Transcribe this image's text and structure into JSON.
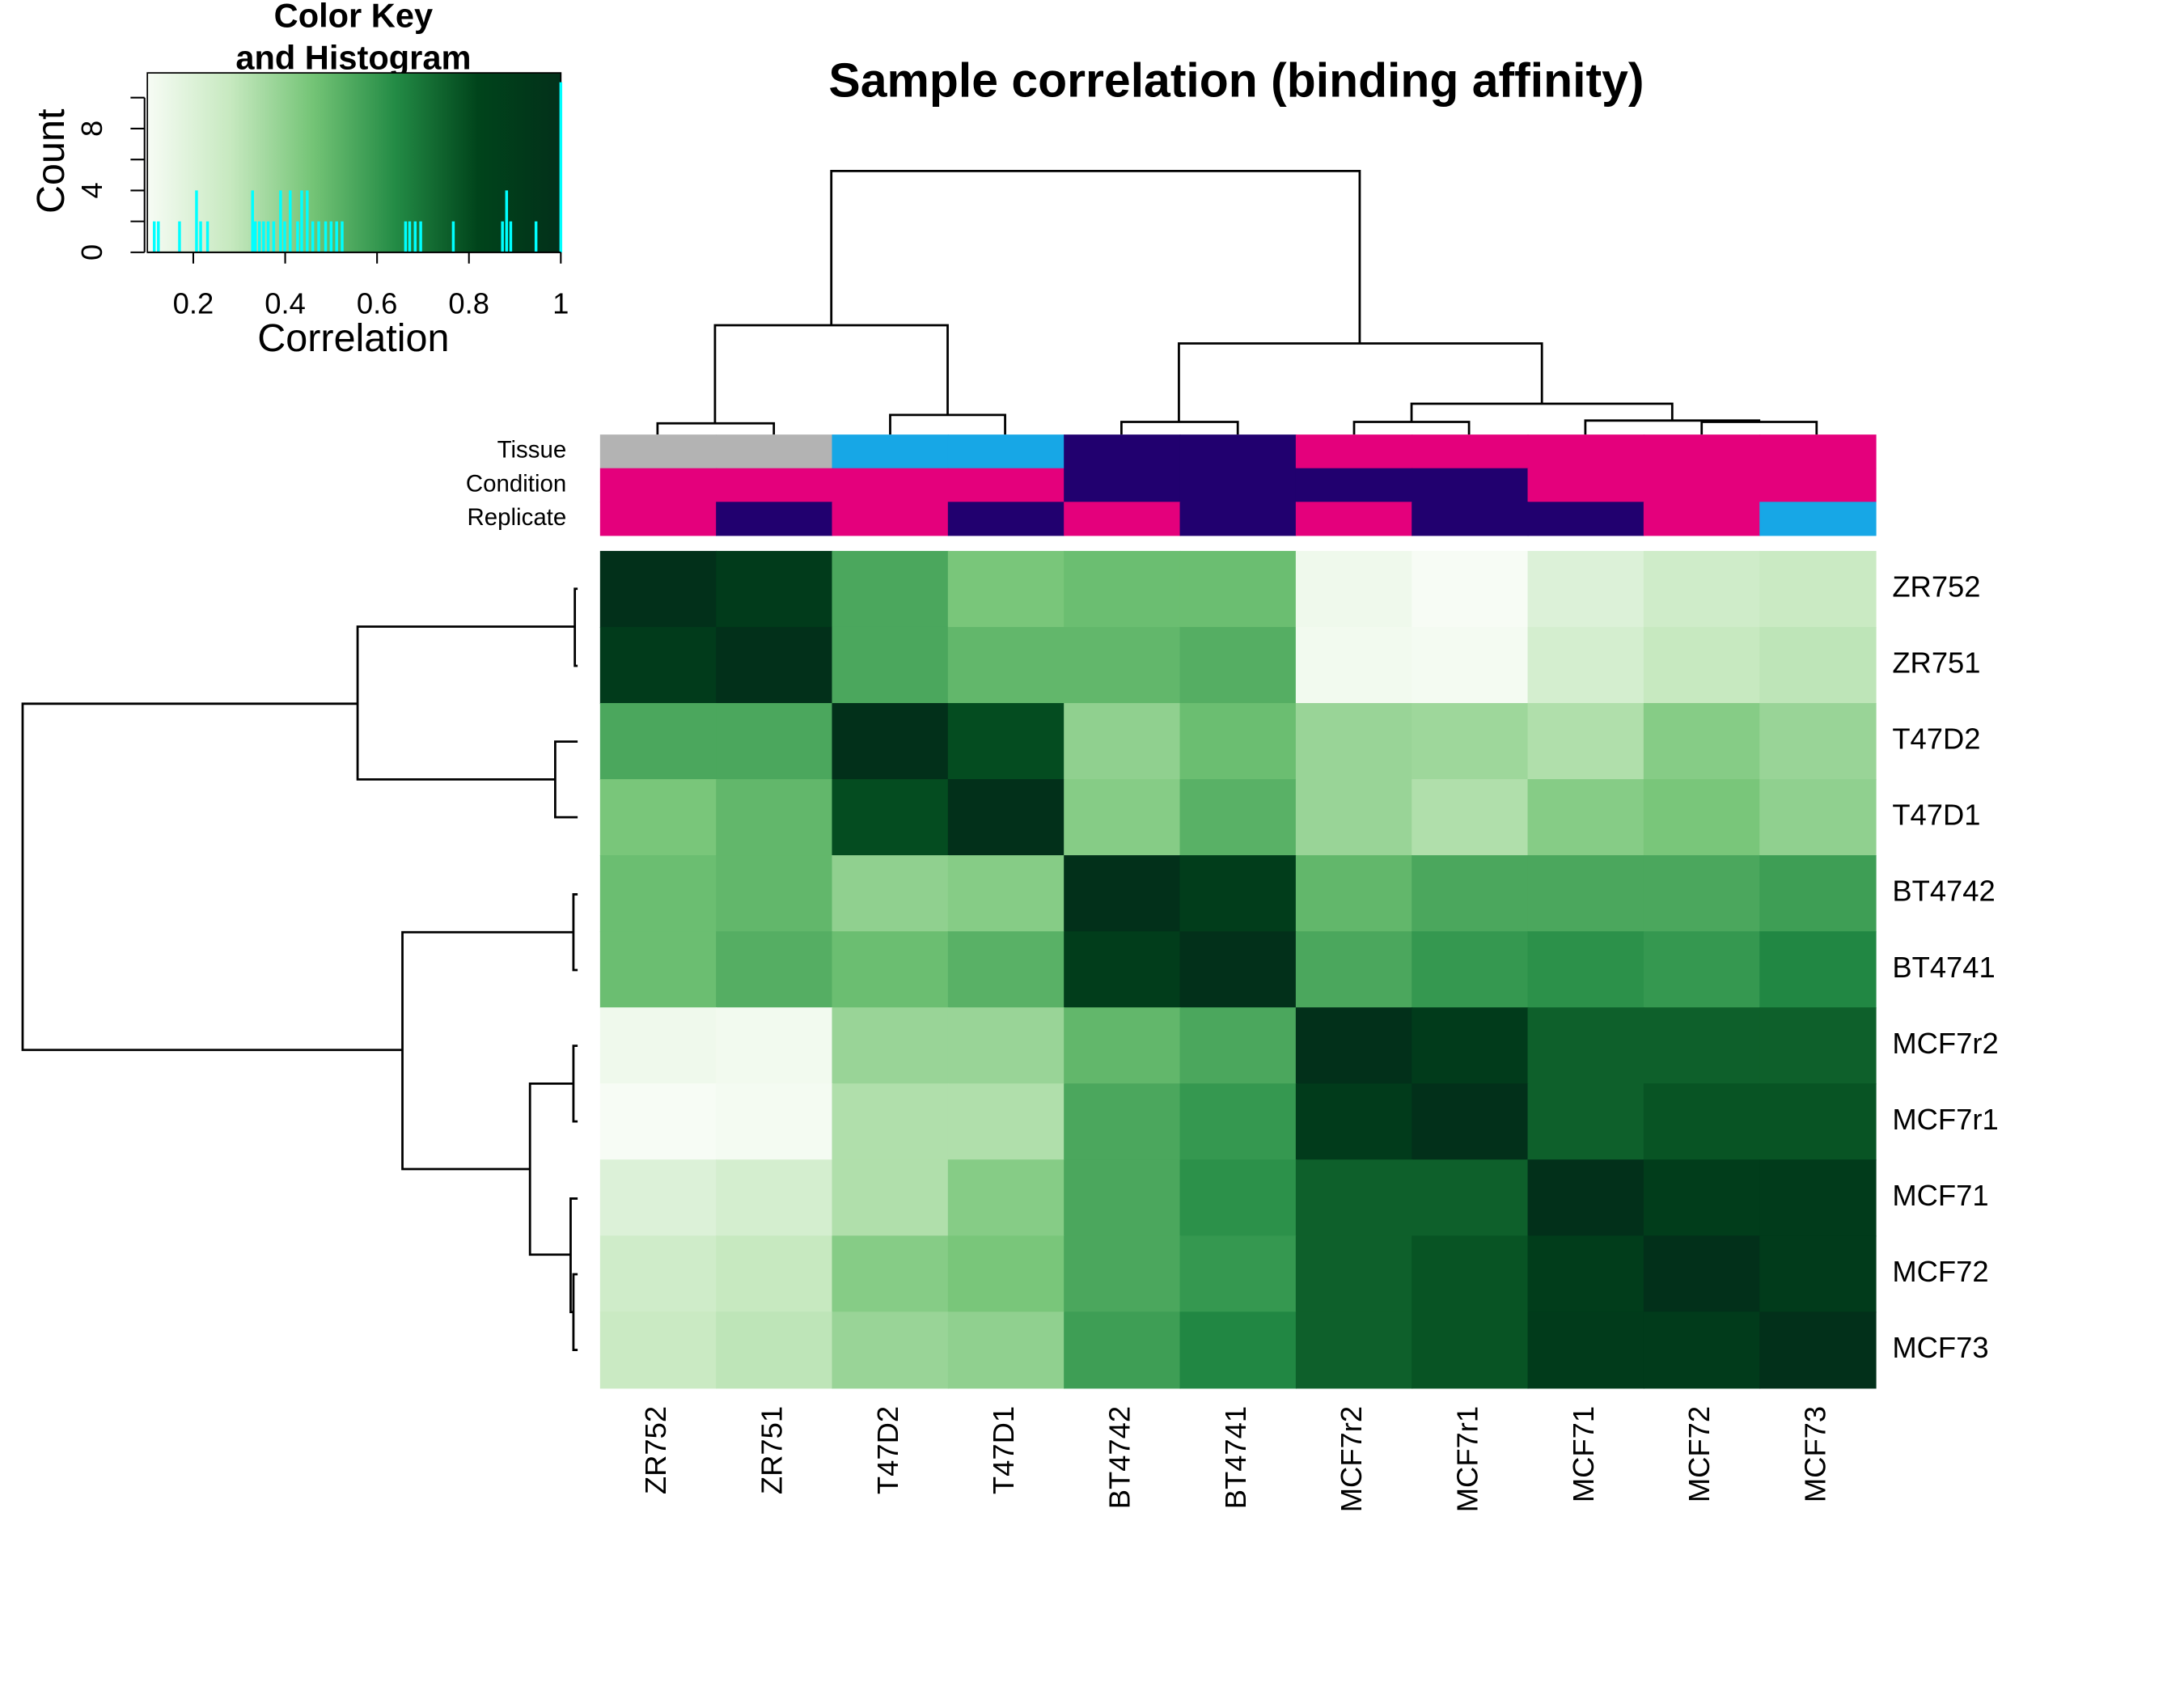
{
  "chart_data": {
    "type": "heatmap",
    "title": "Sample correlation (binding affinity)",
    "columns": [
      "ZR752",
      "ZR751",
      "T47D2",
      "T47D1",
      "BT4742",
      "BT4741",
      "MCF7r2",
      "MCF7r1",
      "MCF71",
      "MCF72",
      "MCF73"
    ],
    "rows": [
      "ZR752",
      "ZR751",
      "T47D2",
      "T47D1",
      "BT4742",
      "BT4741",
      "MCF7r2",
      "MCF7r1",
      "MCF71",
      "MCF72",
      "MCF73"
    ],
    "values": [
      [
        1,
        0.9,
        0.55,
        0.45,
        0.48,
        0.48,
        0.13,
        0.1,
        0.2,
        0.25,
        0.27
      ],
      [
        0.9,
        1,
        0.55,
        0.5,
        0.5,
        0.53,
        0.12,
        0.11,
        0.23,
        0.28,
        0.3
      ],
      [
        0.55,
        0.55,
        1,
        0.8,
        0.4,
        0.48,
        0.38,
        0.37,
        0.33,
        0.42,
        0.38
      ],
      [
        0.45,
        0.5,
        0.8,
        1,
        0.42,
        0.52,
        0.38,
        0.33,
        0.42,
        0.45,
        0.4
      ],
      [
        0.48,
        0.5,
        0.4,
        0.42,
        1,
        0.88,
        0.5,
        0.55,
        0.55,
        0.55,
        0.58
      ],
      [
        0.48,
        0.53,
        0.48,
        0.52,
        0.88,
        1,
        0.55,
        0.6,
        0.62,
        0.6,
        0.65
      ],
      [
        0.13,
        0.12,
        0.38,
        0.38,
        0.5,
        0.55,
        1,
        0.9,
        0.75,
        0.75,
        0.75
      ],
      [
        0.1,
        0.11,
        0.33,
        0.33,
        0.55,
        0.6,
        0.9,
        1,
        0.75,
        0.78,
        0.78
      ],
      [
        0.2,
        0.23,
        0.33,
        0.42,
        0.55,
        0.62,
        0.75,
        0.75,
        1,
        0.88,
        0.9
      ],
      [
        0.25,
        0.28,
        0.42,
        0.45,
        0.55,
        0.6,
        0.75,
        0.78,
        0.88,
        1,
        0.9
      ],
      [
        0.27,
        0.3,
        0.38,
        0.4,
        0.58,
        0.65,
        0.75,
        0.78,
        0.9,
        0.9,
        1
      ]
    ],
    "colorscale": [
      "#f7fcf5",
      "#c7e9c0",
      "#74c476",
      "#238b45",
      "#00441b",
      "#02301a"
    ],
    "annotations": [
      {
        "name": "Tissue",
        "colors": [
          "#b3b3b3",
          "#b3b3b3",
          "#17a7e6",
          "#17a7e6",
          "#21006f",
          "#21006f",
          "#e4007c",
          "#e4007c",
          "#e4007c",
          "#e4007c",
          "#e4007c"
        ]
      },
      {
        "name": "Condition",
        "colors": [
          "#e4007c",
          "#e4007c",
          "#e4007c",
          "#e4007c",
          "#21006f",
          "#21006f",
          "#21006f",
          "#21006f",
          "#e4007c",
          "#e4007c",
          "#e4007c"
        ]
      },
      {
        "name": "Replicate",
        "colors": [
          "#e4007c",
          "#21006f",
          "#e4007c",
          "#21006f",
          "#e4007c",
          "#21006f",
          "#e4007c",
          "#21006f",
          "#21006f",
          "#e4007c",
          "#17a7e6"
        ]
      }
    ],
    "color_key": {
      "title": [
        "Color Key",
        "and Histogram"
      ],
      "xlabel": "Correlation",
      "ylabel": "Count",
      "xlim": [
        0.1,
        1
      ],
      "xticks": [
        0.2,
        0.4,
        0.6,
        0.8,
        1
      ],
      "ylim": [
        0,
        11.6
      ],
      "yticks": [
        0,
        4,
        8
      ],
      "yminorticks": [
        2,
        6,
        10
      ],
      "histogram_color": "#00ffff",
      "histogram": {
        "x": [
          0.115,
          0.124,
          0.17,
          0.207,
          0.216,
          0.231,
          0.329,
          0.335,
          0.344,
          0.353,
          0.363,
          0.375,
          0.39,
          0.399,
          0.411,
          0.427,
          0.436,
          0.448,
          0.46,
          0.473,
          0.488,
          0.5,
          0.512,
          0.524,
          0.662,
          0.671,
          0.683,
          0.695,
          0.766,
          0.873,
          0.882,
          0.891,
          0.946,
          1.0
        ],
        "counts": [
          2,
          2,
          2,
          4,
          2,
          2,
          4,
          2,
          2,
          2,
          2,
          2,
          4,
          2,
          4,
          2,
          4,
          4,
          2,
          2,
          2,
          2,
          2,
          2,
          2,
          2,
          2,
          2,
          2,
          2,
          4,
          2,
          2,
          11
        ]
      }
    }
  }
}
